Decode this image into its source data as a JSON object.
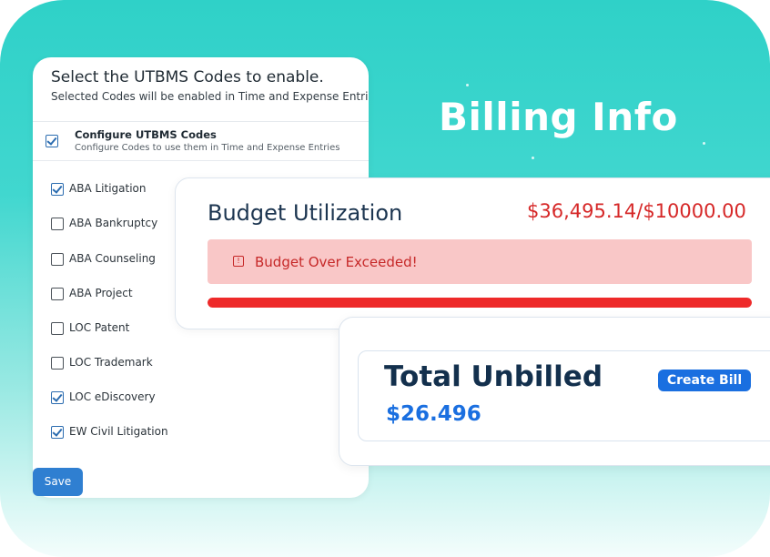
{
  "headline": "Billing Info",
  "utbms": {
    "title": "Select the UTBMS Codes to enable.",
    "subtitle": "Selected Codes will be enabled in Time and Expense Entries",
    "configure": {
      "label": "Configure UTBMS Codes",
      "description": "Configure Codes to use them in Time and Expense Entries",
      "checked": true
    },
    "codes": [
      {
        "label": "ABA Litigation",
        "checked": true
      },
      {
        "label": "ABA Bankruptcy",
        "checked": false
      },
      {
        "label": "ABA Counseling",
        "checked": false
      },
      {
        "label": "ABA Project",
        "checked": false
      },
      {
        "label": "LOC Patent",
        "checked": false
      },
      {
        "label": "LOC Trademark",
        "checked": false
      },
      {
        "label": "LOC eDiscovery",
        "checked": true
      },
      {
        "label": "EW Civil Litigation",
        "checked": true
      }
    ],
    "save_label": "Save"
  },
  "budget": {
    "title": "Budget Utilization",
    "amount": "$36,495.14/$10000.00",
    "alert": "Budget Over Exceeded!",
    "progress_fraction": 1.0
  },
  "unbilled": {
    "title": "Total Unbilled",
    "amount": "$26.496",
    "create_bill_label": "Create Bill"
  },
  "colors": {
    "accent": "#2fd1c8",
    "danger": "#ee2a2a",
    "primary_blue": "#1a6fe0"
  }
}
